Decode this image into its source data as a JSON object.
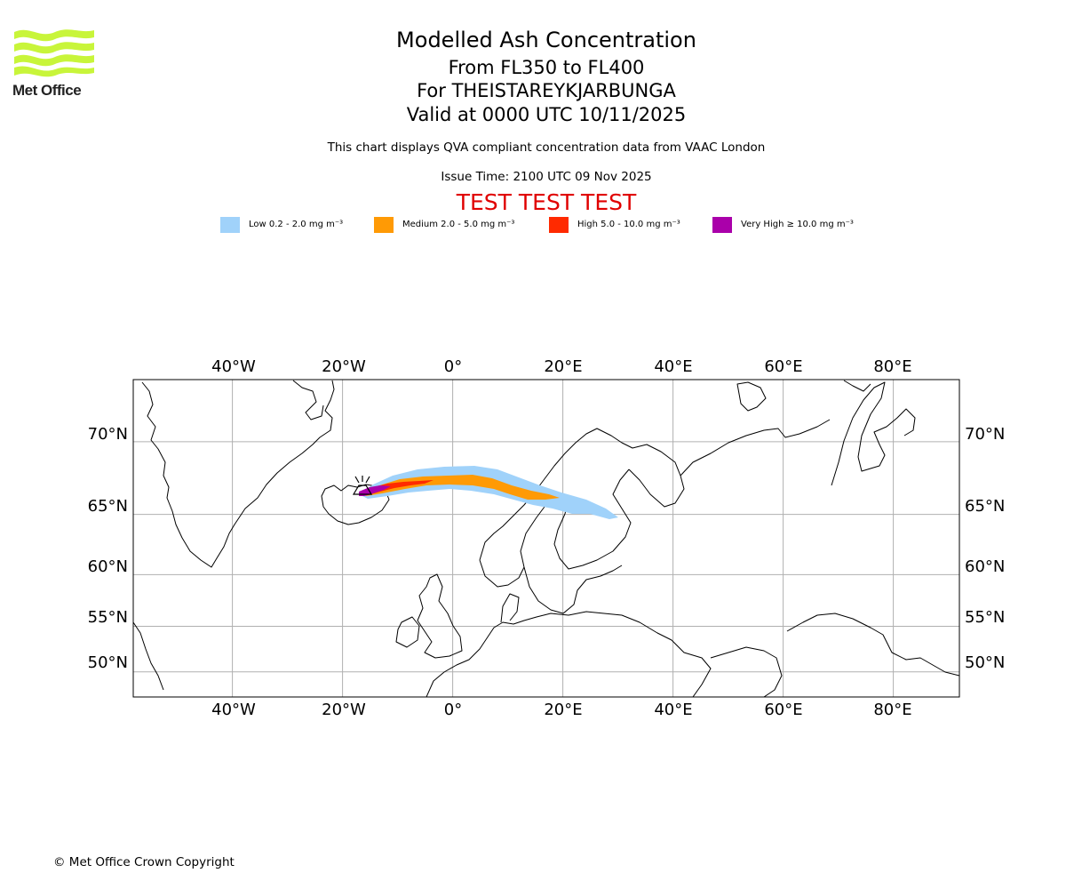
{
  "logo": {
    "text": "Met Office",
    "colors": {
      "waves": "#c8f53a",
      "text": "#222222"
    }
  },
  "header": {
    "title": "Modelled Ash Concentration",
    "flight_levels": "From FL350 to FL400",
    "volcano": "For THEISTAREYKJARBUNGA",
    "valid_time": "Valid at 0000 UTC 10/11/2025",
    "description": "This chart displays QVA compliant concentration data from VAAC London",
    "issue_time": "Issue Time: 2100 UTC 09 Nov 2025",
    "test_banner": "TEST TEST TEST"
  },
  "legend": [
    {
      "label": "Low 0.2 - 2.0 mg m⁻³",
      "color": "#a0d2fa"
    },
    {
      "label": "Medium 2.0 - 5.0 mg m⁻³",
      "color": "#ff9a05"
    },
    {
      "label": "High 5.0 - 10.0 mg m⁻³",
      "color": "#ff2a00"
    },
    {
      "label": "Very High  ≥  10.0 mg m⁻³",
      "color": "#aa00aa"
    }
  ],
  "map": {
    "lon_labels": [
      "40°W",
      "20°W",
      "0°",
      "20°E",
      "40°E",
      "60°E",
      "80°E"
    ],
    "lat_labels": [
      "70°N",
      "65°N",
      "60°N",
      "55°N",
      "50°N"
    ],
    "lon_range": [
      -58,
      92
    ],
    "lat_range": [
      47,
      73.5
    ],
    "lons": [
      -40,
      -20,
      0,
      20,
      40,
      60,
      80
    ],
    "lats": [
      70,
      65,
      60,
      55,
      50
    ],
    "gridline_color": "#b0b0b0",
    "volcano_symbol": "volcano-icon"
  },
  "footer": {
    "copyright": "© Met Office Crown Copyright"
  }
}
